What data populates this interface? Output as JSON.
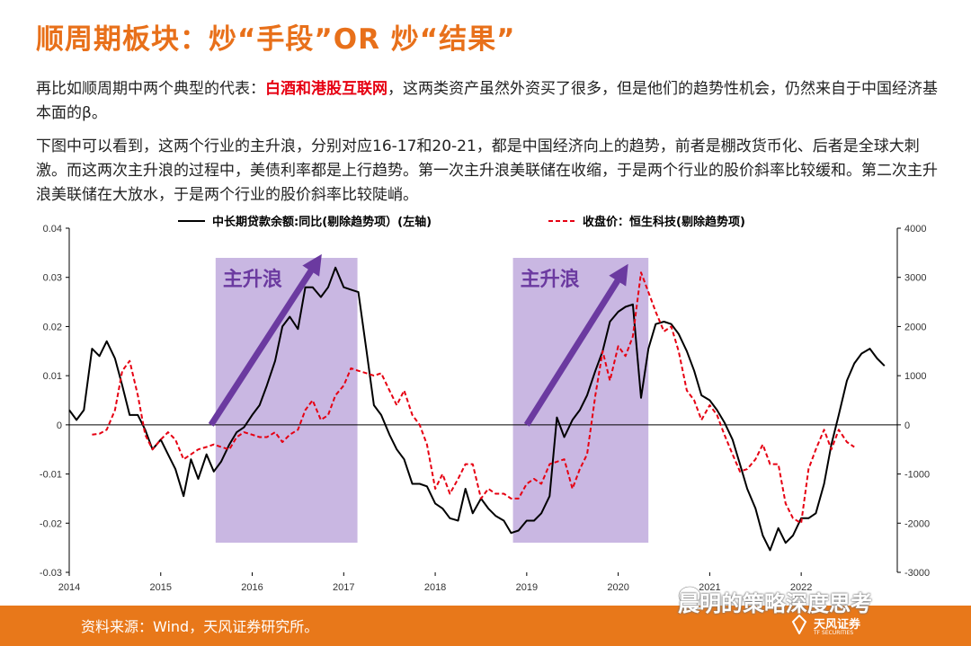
{
  "title": "顺周期板块：炒“手段”OR 炒“结果”",
  "paragraph1": {
    "prefix": "再比如顺周期中两个典型的代表：",
    "highlight": "白酒和港股互联网",
    "suffix": "，这两类资产虽然外资买了很多，但是他们的趋势性机会，仍然来自于中国经济基本面的β。"
  },
  "paragraph2": "下图中可以看到，这两个行业的主升浪，分别对应16-17和20-21，都是中国经济向上的趋势，前者是棚改货币化、后者是全球大刺激。而这两次主升浪的过程中，美债利率都是上行趋势。第一次主升浪美联储在收缩，于是两个行业的股价斜率比较缓和。第二次主升浪美联储在大放水，于是两个行业的股价斜率比较陡峭。",
  "colors": {
    "title": "#e8701a",
    "highlight": "#e60012",
    "footer": "#e8781a",
    "box": "#c9b7e2",
    "arrow": "#6b3aa0",
    "series1": "#000000",
    "series2": "#e60012"
  },
  "chart_data": {
    "type": "line",
    "legend_position": "top",
    "x_ticks": [
      "2014",
      "2015",
      "2016",
      "2017",
      "2018",
      "2019",
      "2020",
      "2021",
      "2022"
    ],
    "y_left": {
      "range": [
        -0.03,
        0.04
      ],
      "ticks": [
        "0.04",
        "0.03",
        "0.02",
        "0.01",
        "0",
        "-0.01",
        "-0.02",
        "-0.03"
      ]
    },
    "y_right": {
      "range": [
        -3000,
        4000
      ],
      "ticks": [
        "4000",
        "3000",
        "2000",
        "1000",
        "0",
        "-1000",
        "-2000",
        "-3000"
      ]
    },
    "annotations": [
      {
        "label": "主升浪",
        "x_start": 2015.6,
        "x_end": 2017.15
      },
      {
        "label": "主升浪",
        "x_start": 2018.85,
        "x_end": 2020.33
      }
    ],
    "series": [
      {
        "name": "中长期贷款余额:同比(剔除趋势项）(左轴)",
        "axis": "left",
        "style": "solid",
        "points": [
          [
            2014.0,
            0.003
          ],
          [
            2014.08,
            0.001
          ],
          [
            2014.16,
            0.003
          ],
          [
            2014.25,
            0.0155
          ],
          [
            2014.33,
            0.014
          ],
          [
            2014.41,
            0.017
          ],
          [
            2014.5,
            0.0135
          ],
          [
            2014.58,
            0.008
          ],
          [
            2014.66,
            0.002
          ],
          [
            2014.75,
            0.002
          ],
          [
            2014.83,
            -0.001
          ],
          [
            2014.91,
            -0.005
          ],
          [
            2015.0,
            -0.003
          ],
          [
            2015.08,
            -0.006
          ],
          [
            2015.16,
            -0.009
          ],
          [
            2015.25,
            -0.0145
          ],
          [
            2015.33,
            -0.007
          ],
          [
            2015.41,
            -0.011
          ],
          [
            2015.5,
            -0.006
          ],
          [
            2015.58,
            -0.0095
          ],
          [
            2015.66,
            -0.0075
          ],
          [
            2015.75,
            -0.004
          ],
          [
            2015.83,
            -0.0015
          ],
          [
            2015.91,
            -0.0005
          ],
          [
            2016.0,
            0.002
          ],
          [
            2016.08,
            0.004
          ],
          [
            2016.16,
            0.008
          ],
          [
            2016.25,
            0.013
          ],
          [
            2016.33,
            0.02
          ],
          [
            2016.41,
            0.022
          ],
          [
            2016.5,
            0.0195
          ],
          [
            2016.58,
            0.028
          ],
          [
            2016.66,
            0.028
          ],
          [
            2016.75,
            0.026
          ],
          [
            2016.83,
            0.028
          ],
          [
            2016.91,
            0.032
          ],
          [
            2017.0,
            0.028
          ],
          [
            2017.08,
            0.0275
          ],
          [
            2017.16,
            0.027
          ],
          [
            2017.25,
            0.015
          ],
          [
            2017.33,
            0.004
          ],
          [
            2017.41,
            0.002
          ],
          [
            2017.5,
            -0.002
          ],
          [
            2017.58,
            -0.005
          ],
          [
            2017.66,
            -0.007
          ],
          [
            2017.75,
            -0.012
          ],
          [
            2017.83,
            -0.012
          ],
          [
            2017.91,
            -0.0125
          ],
          [
            2018.0,
            -0.016
          ],
          [
            2018.08,
            -0.017
          ],
          [
            2018.16,
            -0.019
          ],
          [
            2018.25,
            -0.0195
          ],
          [
            2018.33,
            -0.013
          ],
          [
            2018.41,
            -0.018
          ],
          [
            2018.5,
            -0.015
          ],
          [
            2018.58,
            -0.017
          ],
          [
            2018.66,
            -0.0185
          ],
          [
            2018.75,
            -0.0195
          ],
          [
            2018.83,
            -0.022
          ],
          [
            2018.91,
            -0.0215
          ],
          [
            2019.0,
            -0.0195
          ],
          [
            2019.08,
            -0.0195
          ],
          [
            2019.16,
            -0.018
          ],
          [
            2019.25,
            -0.0145
          ],
          [
            2019.33,
            0.0015
          ],
          [
            2019.41,
            -0.0025
          ],
          [
            2019.5,
            0.001
          ],
          [
            2019.58,
            0.003
          ],
          [
            2019.66,
            0.006
          ],
          [
            2019.75,
            0.011
          ],
          [
            2019.83,
            0.015
          ],
          [
            2019.91,
            0.021
          ],
          [
            2020.0,
            0.023
          ],
          [
            2020.08,
            0.024
          ],
          [
            2020.16,
            0.0245
          ],
          [
            2020.25,
            0.0055
          ],
          [
            2020.33,
            0.0155
          ],
          [
            2020.41,
            0.0205
          ],
          [
            2020.5,
            0.021
          ],
          [
            2020.58,
            0.0205
          ],
          [
            2020.66,
            0.0185
          ],
          [
            2020.75,
            0.015
          ],
          [
            2020.83,
            0.011
          ],
          [
            2020.91,
            0.006
          ],
          [
            2021.0,
            0.005
          ],
          [
            2021.08,
            0.003
          ],
          [
            2021.16,
            0.0005
          ],
          [
            2021.25,
            -0.003
          ],
          [
            2021.33,
            -0.008
          ],
          [
            2021.41,
            -0.013
          ],
          [
            2021.5,
            -0.017
          ],
          [
            2021.58,
            -0.0225
          ],
          [
            2021.66,
            -0.0255
          ],
          [
            2021.75,
            -0.021
          ],
          [
            2021.83,
            -0.024
          ],
          [
            2021.91,
            -0.0225
          ],
          [
            2022.0,
            -0.019
          ],
          [
            2022.08,
            -0.019
          ],
          [
            2022.16,
            -0.018
          ],
          [
            2022.25,
            -0.012
          ],
          [
            2022.33,
            -0.004
          ],
          [
            2022.41,
            0.002
          ],
          [
            2022.5,
            0.009
          ],
          [
            2022.58,
            0.0125
          ],
          [
            2022.66,
            0.0145
          ],
          [
            2022.75,
            0.0155
          ],
          [
            2022.83,
            0.0135
          ],
          [
            2022.91,
            0.012
          ]
        ]
      },
      {
        "name": "收盘价：恒生科技(剔除趋势项)",
        "axis": "right",
        "style": "dashed",
        "points": [
          [
            2014.25,
            -200
          ],
          [
            2014.33,
            -180
          ],
          [
            2014.41,
            -100
          ],
          [
            2014.5,
            300
          ],
          [
            2014.58,
            1100
          ],
          [
            2014.66,
            1300
          ],
          [
            2014.75,
            600
          ],
          [
            2014.83,
            -200
          ],
          [
            2014.91,
            -500
          ],
          [
            2015.0,
            -300
          ],
          [
            2015.08,
            -150
          ],
          [
            2015.16,
            -300
          ],
          [
            2015.25,
            -700
          ],
          [
            2015.33,
            -600
          ],
          [
            2015.41,
            -500
          ],
          [
            2015.5,
            -450
          ],
          [
            2015.58,
            -400
          ],
          [
            2015.66,
            -450
          ],
          [
            2015.75,
            -500
          ],
          [
            2015.83,
            -250
          ],
          [
            2015.91,
            -150
          ],
          [
            2016.0,
            -200
          ],
          [
            2016.08,
            -250
          ],
          [
            2016.16,
            -250
          ],
          [
            2016.25,
            -150
          ],
          [
            2016.33,
            -350
          ],
          [
            2016.41,
            -200
          ],
          [
            2016.5,
            -100
          ],
          [
            2016.58,
            300
          ],
          [
            2016.66,
            500
          ],
          [
            2016.75,
            100
          ],
          [
            2016.83,
            200
          ],
          [
            2016.91,
            600
          ],
          [
            2017.0,
            800
          ],
          [
            2017.08,
            1150
          ],
          [
            2017.16,
            1100
          ],
          [
            2017.25,
            1050
          ],
          [
            2017.33,
            1000
          ],
          [
            2017.41,
            1050
          ],
          [
            2017.5,
            700
          ],
          [
            2017.58,
            400
          ],
          [
            2017.66,
            700
          ],
          [
            2017.75,
            200
          ],
          [
            2017.83,
            0
          ],
          [
            2017.91,
            -400
          ],
          [
            2018.0,
            -1300
          ],
          [
            2018.08,
            -1000
          ],
          [
            2018.16,
            -1400
          ],
          [
            2018.25,
            -1100
          ],
          [
            2018.33,
            -800
          ],
          [
            2018.41,
            -800
          ],
          [
            2018.5,
            -1500
          ],
          [
            2018.58,
            -1300
          ],
          [
            2018.66,
            -1400
          ],
          [
            2018.75,
            -1400
          ],
          [
            2018.83,
            -1500
          ],
          [
            2018.91,
            -1500
          ],
          [
            2019.0,
            -1200
          ],
          [
            2019.08,
            -1100
          ],
          [
            2019.16,
            -1200
          ],
          [
            2019.25,
            -800
          ],
          [
            2019.33,
            -750
          ],
          [
            2019.41,
            -700
          ],
          [
            2019.5,
            -1300
          ],
          [
            2019.58,
            -900
          ],
          [
            2019.66,
            -600
          ],
          [
            2019.75,
            600
          ],
          [
            2019.83,
            1500
          ],
          [
            2019.91,
            900
          ],
          [
            2020.0,
            1600
          ],
          [
            2020.08,
            1400
          ],
          [
            2020.16,
            1800
          ],
          [
            2020.25,
            3100
          ],
          [
            2020.33,
            2700
          ],
          [
            2020.41,
            2300
          ],
          [
            2020.5,
            1900
          ],
          [
            2020.58,
            2000
          ],
          [
            2020.66,
            1500
          ],
          [
            2020.75,
            700
          ],
          [
            2020.83,
            500
          ],
          [
            2020.91,
            100
          ],
          [
            2021.0,
            400
          ],
          [
            2021.08,
            200
          ],
          [
            2021.16,
            -200
          ],
          [
            2021.25,
            -600
          ],
          [
            2021.33,
            -950
          ],
          [
            2021.41,
            -900
          ],
          [
            2021.5,
            -700
          ],
          [
            2021.58,
            -400
          ],
          [
            2021.66,
            -800
          ],
          [
            2021.75,
            -800
          ],
          [
            2021.83,
            -1600
          ],
          [
            2021.91,
            -1900
          ],
          [
            2022.0,
            -2000
          ],
          [
            2022.08,
            -900
          ],
          [
            2022.16,
            -500
          ],
          [
            2022.25,
            -100
          ],
          [
            2022.33,
            -500
          ],
          [
            2022.41,
            -100
          ],
          [
            2022.5,
            -350
          ],
          [
            2022.58,
            -450
          ]
        ]
      }
    ]
  },
  "footer": {
    "source": "资料来源：Wind，天风证券研究所。"
  },
  "watermark": "晨明的策略深度思考",
  "logo": {
    "name": "天风证券",
    "sub": "TF SECURITIES"
  }
}
